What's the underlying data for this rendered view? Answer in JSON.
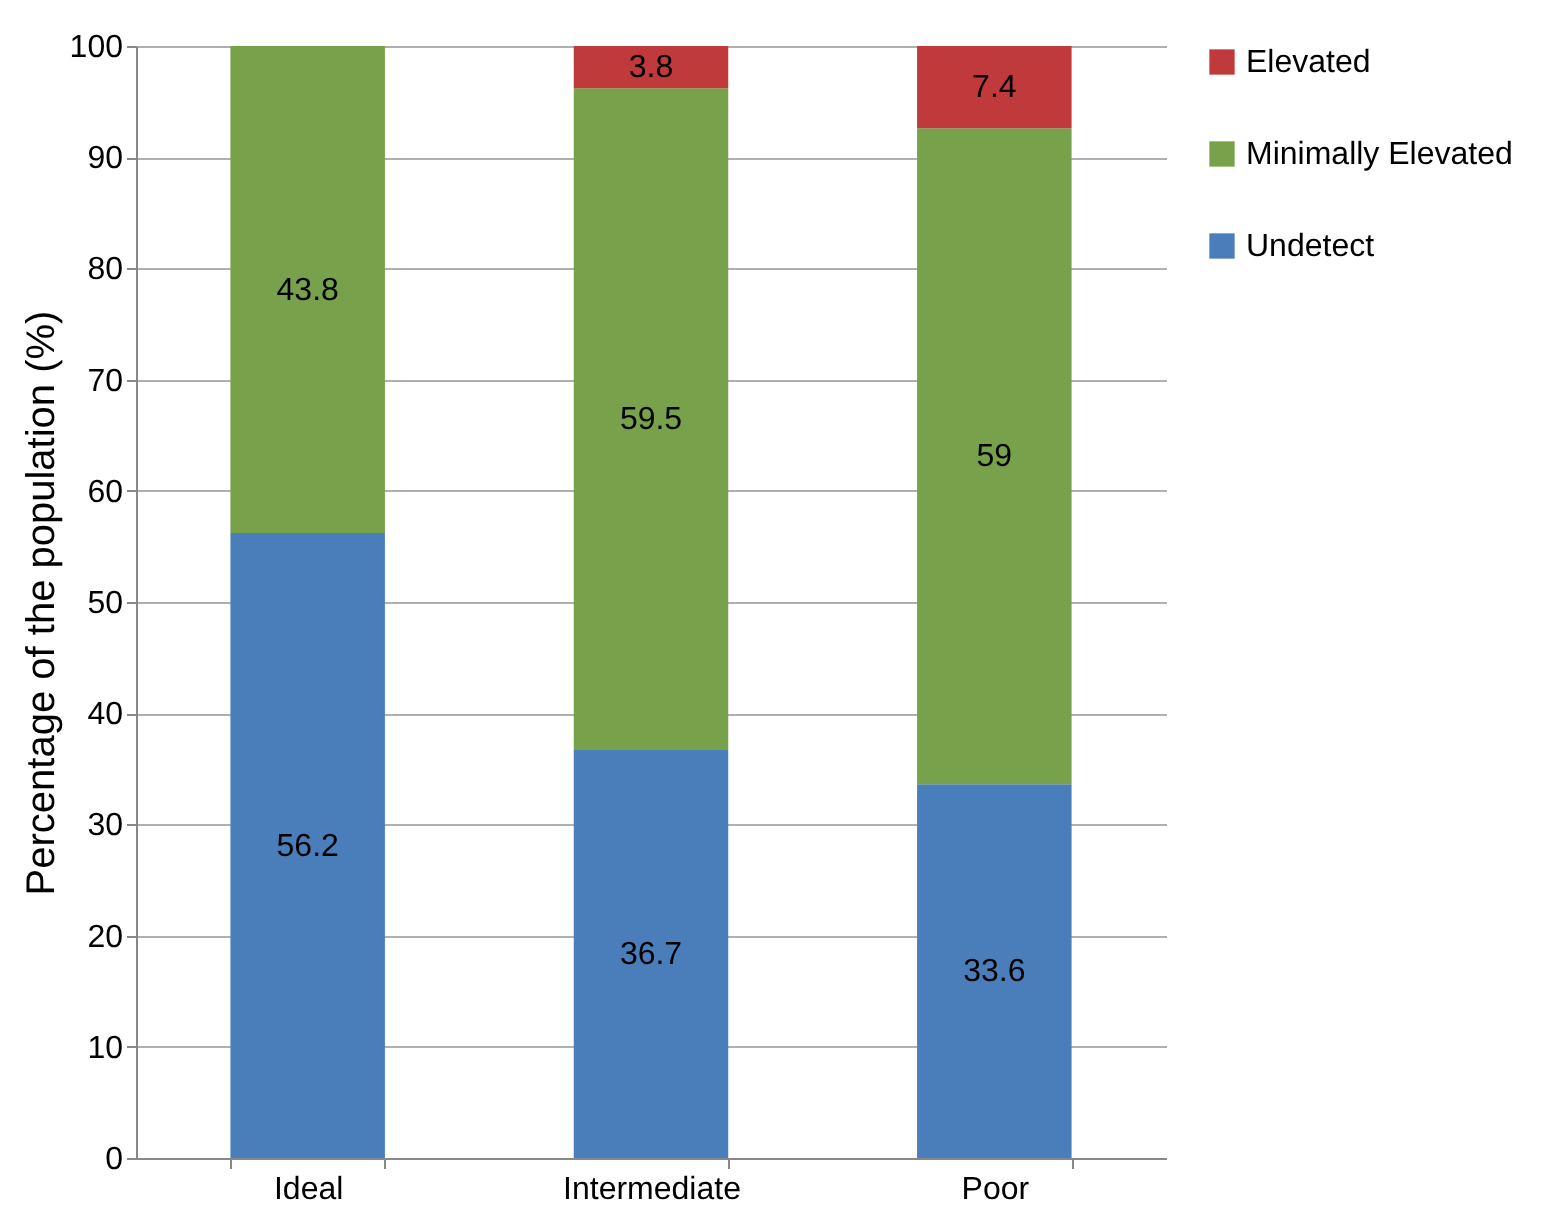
{
  "chart_data": {
    "type": "bar",
    "stacked": true,
    "ylabel": "Percentage of the population (%)",
    "categories": [
      "Ideal",
      "Intermediate",
      "Poor"
    ],
    "series": [
      {
        "name": "Undetect",
        "color": "#4a7ebb",
        "values": [
          56.2,
          36.7,
          33.6
        ]
      },
      {
        "name": "Minimally Elevated",
        "color": "#77a14a",
        "values": [
          43.8,
          59.5,
          59
        ]
      },
      {
        "name": "Elevated",
        "color": "#c0393b",
        "values": [
          null,
          3.8,
          7.4
        ]
      }
    ],
    "ylim": [
      0,
      100
    ],
    "yticks": [
      0,
      10,
      20,
      30,
      40,
      50,
      60,
      70,
      80,
      90,
      100
    ],
    "grid": "y",
    "legend": "right",
    "data_labels": true
  }
}
